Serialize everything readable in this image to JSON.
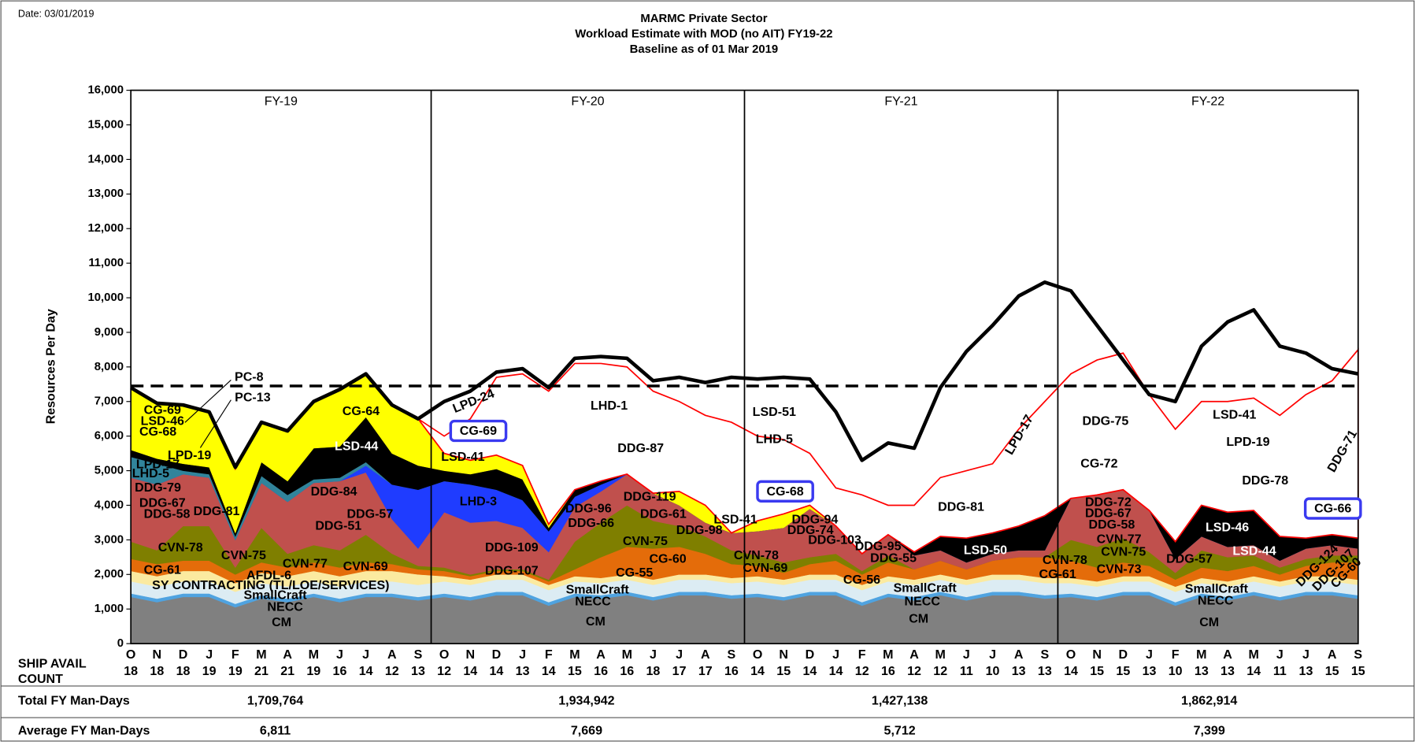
{
  "date": "Date: 03/01/2019",
  "chart_data": {
    "type": "stacked_area",
    "title": [
      "MARMC Private Sector",
      "Workload Estimate with MOD (no AIT) FY19-22",
      "Baseline as of 01 Mar 2019"
    ],
    "y_label": "Resources Per Day",
    "fiscal_years": [
      "FY-19",
      "FY-20",
      "FY-21",
      "FY-22"
    ],
    "categories": [
      "O",
      "N",
      "D",
      "J",
      "F",
      "M",
      "A",
      "M",
      "J",
      "J",
      "A",
      "S",
      "O",
      "N",
      "D",
      "J",
      "F",
      "M",
      "A",
      "M",
      "J",
      "J",
      "A",
      "S",
      "O",
      "N",
      "D",
      "J",
      "F",
      "M",
      "A",
      "M",
      "J",
      "J",
      "A",
      "S",
      "O",
      "N",
      "D",
      "J",
      "F",
      "M",
      "A",
      "M",
      "J",
      "J",
      "A",
      "S"
    ],
    "ship_avail_label": "SHIP AVAIL COUNT",
    "ship_avail_count": [
      18,
      18,
      18,
      19,
      19,
      21,
      21,
      19,
      16,
      14,
      12,
      13,
      12,
      14,
      14,
      13,
      14,
      15,
      16,
      16,
      18,
      17,
      17,
      16,
      14,
      15,
      14,
      14,
      12,
      16,
      12,
      12,
      11,
      10,
      13,
      13,
      14,
      15,
      15,
      13,
      10,
      13,
      13,
      14,
      11,
      13,
      15,
      15
    ],
    "ylim": [
      0,
      16000
    ],
    "yticks": [
      0,
      {
        "value": 1000,
        "label": "1,000"
      },
      {
        "value": 2000,
        "label": "2,000"
      },
      {
        "value": 3000,
        "label": "3,000"
      },
      {
        "value": 4000,
        "label": "4,000"
      },
      {
        "value": 5000,
        "label": "5,000"
      },
      {
        "value": 6000,
        "label": "6,000"
      },
      {
        "value": 7000,
        "label": "7,000"
      },
      {
        "value": 8000,
        "label": "8,000"
      },
      {
        "value": 9000,
        "label": "9,000"
      },
      {
        "value": 10000,
        "label": "10,000"
      },
      {
        "value": 11000,
        "label": "11,000"
      },
      {
        "value": 12000,
        "label": "12,000"
      },
      {
        "value": 13000,
        "label": "13,000"
      },
      {
        "value": 14000,
        "label": "14,000"
      },
      {
        "value": 15000,
        "label": "15,000"
      },
      {
        "value": 16000,
        "label": "16,000"
      }
    ],
    "series": [
      {
        "name": "CM",
        "color": "#808080",
        "values": [
          1350,
          1200,
          1350,
          1350,
          1050,
          1300,
          1200,
          1350,
          1200,
          1350,
          1350,
          1250,
          1350,
          1250,
          1400,
          1400,
          1100,
          1350,
          1300,
          1400,
          1250,
          1400,
          1400,
          1300,
          1350,
          1250,
          1400,
          1400,
          1100,
          1350,
          1250,
          1400,
          1250,
          1400,
          1400,
          1300,
          1350,
          1250,
          1400,
          1400,
          1100,
          1350,
          1250,
          1400,
          1250,
          1400,
          1400,
          1300
        ]
      },
      {
        "name": "NECC",
        "color": "#4fa3e0",
        "values": [
          100,
          100,
          100,
          100,
          100,
          100,
          100,
          100,
          100,
          100,
          100,
          100,
          100,
          100,
          100,
          100,
          100,
          100,
          100,
          100,
          100,
          100,
          100,
          100,
          100,
          100,
          100,
          100,
          100,
          100,
          100,
          100,
          100,
          100,
          100,
          100,
          100,
          100,
          100,
          100,
          100,
          100,
          100,
          100,
          100,
          100,
          100,
          100
        ]
      },
      {
        "name": "SmallCraft",
        "color": "#dcecf3",
        "values": [
          350,
          350,
          350,
          350,
          350,
          350,
          350,
          350,
          350,
          350,
          350,
          350,
          350,
          350,
          350,
          350,
          350,
          350,
          350,
          350,
          350,
          350,
          350,
          350,
          350,
          350,
          350,
          350,
          350,
          350,
          350,
          350,
          350,
          350,
          350,
          350,
          300,
          300,
          300,
          300,
          300,
          300,
          300,
          300,
          300,
          300,
          300,
          300
        ]
      },
      {
        "name": "SY CONTRACTING (TL/LOE/SERVICES)",
        "color": "#fbeaa0",
        "values": [
          300,
          300,
          300,
          300,
          250,
          300,
          300,
          300,
          300,
          300,
          300,
          300,
          150,
          150,
          150,
          150,
          150,
          150,
          150,
          150,
          150,
          150,
          150,
          150,
          150,
          150,
          150,
          150,
          150,
          150,
          150,
          150,
          150,
          150,
          150,
          150,
          150,
          150,
          150,
          150,
          150,
          150,
          150,
          150,
          150,
          150,
          150,
          150
        ]
      },
      {
        "name": "CG-61",
        "color": "#e46c0a",
        "values": [
          350,
          350,
          300,
          300,
          250,
          300,
          250,
          250,
          250,
          250,
          200,
          150,
          150,
          100,
          100,
          100,
          100,
          200,
          600,
          800,
          900,
          800,
          600,
          400,
          300,
          200,
          300,
          400,
          300,
          400,
          300,
          400,
          300,
          400,
          500,
          600,
          500,
          400,
          400,
          300,
          200,
          300,
          300,
          300,
          200,
          300,
          400,
          500
        ]
      },
      {
        "name": "CVN-78",
        "color": "#7f7f00",
        "values": [
          500,
          400,
          1000,
          1000,
          200,
          1000,
          400,
          500,
          500,
          800,
          300,
          100,
          100,
          50,
          50,
          50,
          50,
          800,
          1000,
          1200,
          800,
          600,
          500,
          400,
          300,
          300,
          200,
          200,
          100,
          200,
          0,
          0,
          0,
          0,
          0,
          0,
          600,
          600,
          700,
          400,
          200,
          500,
          400,
          300,
          200,
          200,
          200,
          200
        ]
      },
      {
        "name": "DDG-58",
        "color": "#c0504d",
        "values": [
          1850,
          1900,
          1500,
          1400,
          800,
          1300,
          1500,
          1800,
          2000,
          1800,
          1000,
          500,
          1600,
          1500,
          1400,
          1200,
          800,
          1000,
          900,
          900,
          800,
          600,
          400,
          500,
          700,
          1000,
          1400,
          800,
          500,
          600,
          400,
          300,
          200,
          200,
          200,
          200,
          1200,
          1500,
          1400,
          1200,
          400,
          400,
          300,
          300,
          200,
          300,
          300,
          200
        ]
      },
      {
        "name": "LHD-3",
        "color": "#1f3cff",
        "values": [
          0,
          0,
          0,
          0,
          0,
          0,
          0,
          0,
          0,
          200,
          1000,
          1700,
          900,
          1100,
          900,
          800,
          600,
          300,
          200,
          0,
          0,
          0,
          0,
          0,
          0,
          0,
          0,
          0,
          0,
          0,
          0,
          0,
          0,
          0,
          0,
          0,
          0,
          0,
          0,
          0,
          0,
          0,
          0,
          0,
          0,
          0,
          0,
          0
        ]
      },
      {
        "name": "LPD-17",
        "color": "#31849b",
        "values": [
          600,
          600,
          100,
          100,
          100,
          200,
          200,
          100,
          100,
          100,
          0,
          0,
          0,
          0,
          0,
          0,
          0,
          0,
          0,
          0,
          0,
          0,
          0,
          0,
          0,
          0,
          0,
          0,
          0,
          0,
          0,
          0,
          0,
          0,
          0,
          0,
          0,
          0,
          0,
          0,
          0,
          0,
          0,
          0,
          0,
          0,
          0,
          0
        ]
      },
      {
        "name": "LSD-44",
        "color": "#000000",
        "values": [
          200,
          150,
          200,
          200,
          100,
          400,
          400,
          900,
          900,
          1300,
          900,
          700,
          300,
          300,
          600,
          600,
          100,
          200,
          100,
          0,
          0,
          0,
          0,
          0,
          0,
          0,
          0,
          0,
          0,
          0,
          100,
          400,
          700,
          600,
          700,
          1000,
          0,
          0,
          0,
          0,
          500,
          900,
          1000,
          1000,
          700,
          300,
          300,
          300
        ]
      },
      {
        "name": "CG-64",
        "color": "#ffff00",
        "values": [
          1800,
          1600,
          1700,
          1600,
          1850,
          1150,
          1450,
          1350,
          1650,
          1250,
          1400,
          1350,
          500,
          400,
          400,
          400,
          100,
          0,
          0,
          0,
          0,
          400,
          500,
          0,
          300,
          400,
          100,
          0,
          0,
          0,
          0,
          0,
          0,
          0,
          0,
          0,
          0,
          0,
          0,
          0,
          0,
          0,
          0,
          0,
          0,
          0,
          0,
          0
        ]
      },
      {
        "name": "LHD-1",
        "color": "#ffffff",
        "outline": "#ff0000",
        "values": [
          0,
          0,
          0,
          0,
          0,
          0,
          0,
          0,
          0,
          0,
          0,
          0,
          500,
          1200,
          2250,
          2650,
          3850,
          3650,
          3400,
          3100,
          2950,
          2600,
          2600,
          3200,
          2450,
          2150,
          1500,
          1100,
          1700,
          850,
          1350,
          1700,
          1950,
          2000,
          2800,
          3300,
          3600,
          3900,
          3950,
          3350,
          3250,
          3000,
          3200,
          3250,
          3500,
          4150,
          4450,
          5450
        ]
      }
    ],
    "total_line": {
      "color": "#000000",
      "values": [
        7400,
        6950,
        6900,
        6700,
        5100,
        6400,
        6150,
        7000,
        7350,
        7800,
        6900,
        6500,
        7000,
        7300,
        7850,
        7950,
        7400,
        8250,
        8300,
        8250,
        7600,
        7700,
        7550,
        7700,
        7650,
        7700,
        7650,
        6700,
        5300,
        5800,
        5650,
        7400,
        8450,
        9200,
        10050,
        10450,
        10200,
        9200,
        8200,
        7200,
        7000,
        8600,
        9300,
        9650,
        8600,
        8400,
        7950,
        7800
      ]
    },
    "reference_line": 7450,
    "labels": [
      {
        "text": "PC-8"
      },
      {
        "text": "PC-13"
      },
      {
        "text": "CG-69"
      },
      {
        "text": "LSD-46"
      },
      {
        "text": "CG-68"
      },
      {
        "text": "LPD-19"
      },
      {
        "text": "LHD-5"
      },
      {
        "text": "DDG-79"
      },
      {
        "text": "DDG-67"
      },
      {
        "text": "DDG-81"
      },
      {
        "text": "DDG-84"
      },
      {
        "text": "DDG-57"
      },
      {
        "text": "DDG-51"
      },
      {
        "text": "CVN-75"
      },
      {
        "text": "CVN-77"
      },
      {
        "text": "CVN-69"
      },
      {
        "text": "AFDL-6"
      },
      {
        "text": "LPD-24"
      },
      {
        "text": "CG-69",
        "boxed": true
      },
      {
        "text": "LSD-41"
      },
      {
        "text": "DDG-87"
      },
      {
        "text": "DDG-119"
      },
      {
        "text": "DDG-96"
      },
      {
        "text": "DDG-61"
      },
      {
        "text": "DDG-66"
      },
      {
        "text": "DDG-98"
      },
      {
        "text": "LSD-41"
      },
      {
        "text": "DDG-109"
      },
      {
        "text": "CVN-75"
      },
      {
        "text": "CG-60"
      },
      {
        "text": "DDG-107"
      },
      {
        "text": "CG-55"
      },
      {
        "text": "SmallCraft"
      },
      {
        "text": "NECC"
      },
      {
        "text": "CM"
      },
      {
        "text": "LSD-51"
      },
      {
        "text": "LHD-5"
      },
      {
        "text": "CG-68",
        "boxed": true
      },
      {
        "text": "DDG-94"
      },
      {
        "text": "DDG-74"
      },
      {
        "text": "DDG-103"
      },
      {
        "text": "CVN-78"
      },
      {
        "text": "CVN-69"
      },
      {
        "text": "DDG-95"
      },
      {
        "text": "DDG-55"
      },
      {
        "text": "CG-56"
      },
      {
        "text": "SmallCraft"
      },
      {
        "text": "NECC"
      },
      {
        "text": "CM"
      },
      {
        "text": "DDG-81"
      },
      {
        "text": "LSD-50"
      },
      {
        "text": "LPD-17"
      },
      {
        "text": "CVN-78"
      },
      {
        "text": "CG-61"
      },
      {
        "text": "DDG-75"
      },
      {
        "text": "CG-72"
      },
      {
        "text": "DDG-72"
      },
      {
        "text": "DDG-67"
      },
      {
        "text": "DDG-58"
      },
      {
        "text": "CVN-77"
      },
      {
        "text": "CVN-75"
      },
      {
        "text": "CVN-73"
      },
      {
        "text": "DDG-57"
      },
      {
        "text": "SmallCraft"
      },
      {
        "text": "NECC"
      },
      {
        "text": "CM"
      },
      {
        "text": "LSD-41"
      },
      {
        "text": "LPD-19"
      },
      {
        "text": "DDG-78"
      },
      {
        "text": "LSD-46"
      },
      {
        "text": "LSD-44"
      },
      {
        "text": "DDG-71"
      },
      {
        "text": "CG-66",
        "boxed": true
      },
      {
        "text": "DDG-124"
      },
      {
        "text": "DDG-107"
      },
      {
        "text": "CG-60"
      }
    ]
  },
  "table": {
    "rows": [
      {
        "label": "Total FY Man-Days",
        "values": [
          "1,709,764",
          "1,934,942",
          "1,427,138",
          "1,862,914"
        ]
      },
      {
        "label": "Average FY Man-Days",
        "values": [
          "6,811",
          "7,669",
          "5,712",
          "7,399"
        ]
      }
    ]
  }
}
